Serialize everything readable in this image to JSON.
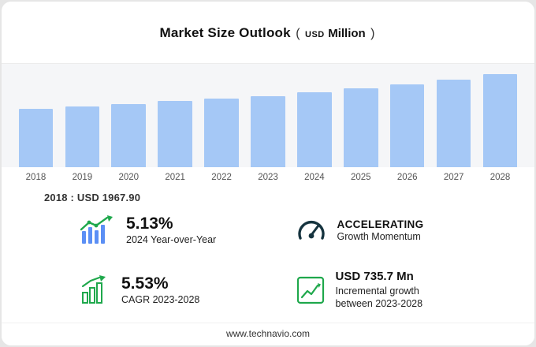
{
  "title": {
    "main": "Market Size Outlook",
    "open": "(",
    "usd": "USD",
    "unit": "Million",
    "close": ")"
  },
  "chart_data": {
    "type": "bar",
    "title": "Market Size Outlook (USD Million)",
    "categories": [
      "2018",
      "2019",
      "2020",
      "2021",
      "2022",
      "2023",
      "2024",
      "2025",
      "2026",
      "2027",
      "2028"
    ],
    "values": [
      1967.9,
      2045.3,
      2126.2,
      2210.3,
      2297.7,
      2381.7,
      2503.9,
      2640.5,
      2784.6,
      2936.5,
      3117.4
    ],
    "xlabel": "",
    "ylabel": "USD Million",
    "ylim": [
      0,
      3300
    ],
    "grid": false,
    "legend": "none",
    "bar_color": "#a5c8f6"
  },
  "annotation": {
    "base_year": "2018 : USD  1967.90"
  },
  "stats": {
    "yoy": {
      "value": "5.13%",
      "caption": "2024 Year-over-Year"
    },
    "momentum": {
      "title": "ACCELERATING",
      "caption": "Growth Momentum"
    },
    "cagr": {
      "value": "5.53%",
      "caption": "CAGR 2023-2028"
    },
    "incremental": {
      "value": "USD 735.7 Mn",
      "caption_line1": "Incremental growth",
      "caption_line2": "between 2023-2028"
    }
  },
  "footer": {
    "url": "www.technavio.com"
  },
  "colors": {
    "bar": "#a5c8f6",
    "accent_green": "#1fa84c",
    "gauge_dark": "#16343f"
  }
}
